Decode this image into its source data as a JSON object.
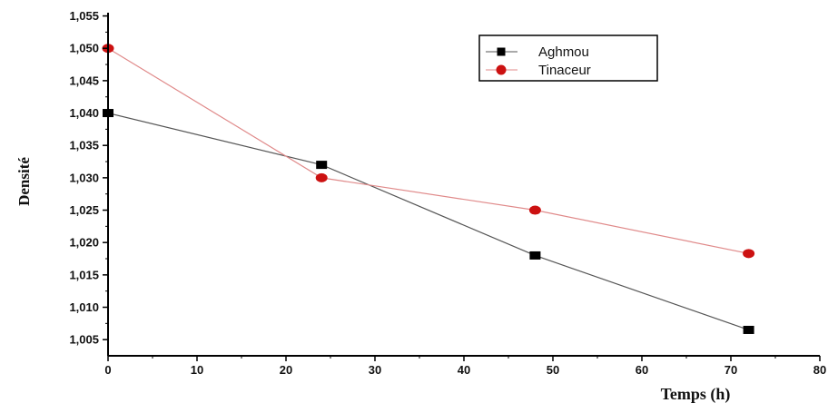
{
  "chart_data": {
    "type": "line",
    "xlabel": "Temps (h)",
    "ylabel": "Densité",
    "xlim": [
      0,
      80
    ],
    "ylim": [
      1.0025,
      1.0555
    ],
    "xticks": [
      0,
      10,
      20,
      30,
      40,
      50,
      60,
      70,
      80
    ],
    "xtick_labels": [
      "0",
      "10",
      "20",
      "30",
      "40",
      "50",
      "60",
      "70",
      "80"
    ],
    "yticks": [
      1.005,
      1.01,
      1.015,
      1.02,
      1.025,
      1.03,
      1.035,
      1.04,
      1.045,
      1.05,
      1.055
    ],
    "ytick_labels": [
      "1,005",
      "1,010",
      "1,015",
      "1,020",
      "1,025",
      "1,030",
      "1,035",
      "1,040",
      "1,045",
      "1,050",
      "1,055"
    ],
    "grid": false,
    "legend_position": "top-right",
    "series": [
      {
        "name": "Aghmou",
        "marker": "square",
        "color": "#000000",
        "line_color": "#555555",
        "x": [
          0,
          24,
          48,
          72
        ],
        "y": [
          1.04,
          1.032,
          1.018,
          1.0065
        ]
      },
      {
        "name": "Tinaceur",
        "marker": "circle",
        "color": "#cc1111",
        "line_color": "#e08a8a",
        "x": [
          0,
          24,
          48,
          72
        ],
        "y": [
          1.05,
          1.03,
          1.025,
          1.0183
        ]
      }
    ]
  }
}
